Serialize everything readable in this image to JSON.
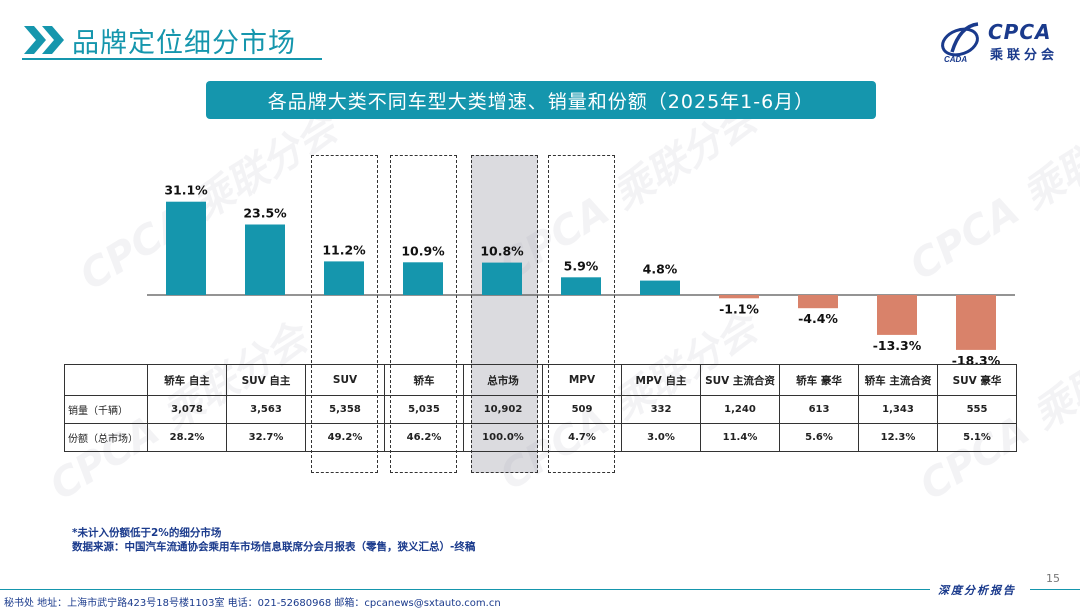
{
  "header": {
    "title": "品牌定位细分市场",
    "logo_text": "CPCA",
    "logo_sub": "乘联分会"
  },
  "subtitle": "各品牌大类不同车型大类增速、销量和份额（2025年1-6月）",
  "colors": {
    "positive": "#1596ad",
    "negative": "#d9826a",
    "accent": "#1596ad",
    "dark_blue": "#1a3a8c"
  },
  "chart_data": {
    "type": "bar",
    "categories": [
      "轿车 自主",
      "SUV 自主",
      "SUV",
      "轿车",
      "总市场",
      "MPV",
      "MPV 自主",
      "SUV 主流合资",
      "轿车 豪华",
      "轿车 主流合资",
      "SUV 豪华"
    ],
    "values": [
      31.1,
      23.5,
      11.2,
      10.9,
      10.8,
      5.9,
      4.8,
      -1.1,
      -4.4,
      -13.3,
      -18.3
    ],
    "labels": [
      "31.1%",
      "23.5%",
      "11.2%",
      "10.9%",
      "10.8%",
      "5.9%",
      "4.8%",
      "-1.1%",
      "-4.4%",
      "-13.3%",
      "-18.3%"
    ],
    "unit": "%",
    "legend": "none",
    "grid": false
  },
  "table": {
    "rows": [
      {
        "label": "销量（千辆）",
        "values": [
          "3,078",
          "3,563",
          "5,358",
          "5,035",
          "10,902",
          "509",
          "332",
          "1,240",
          "613",
          "1,343",
          "555"
        ]
      },
      {
        "label": "份额（总市场）",
        "values": [
          "28.2%",
          "32.7%",
          "49.2%",
          "46.2%",
          "100.0%",
          "4.7%",
          "3.0%",
          "11.4%",
          "5.6%",
          "12.3%",
          "5.1%"
        ]
      }
    ]
  },
  "notes": {
    "line1": "*未计入份额低于2%的细分市场",
    "line2": "数据来源：中国汽车流通协会乘用车市场信息联席分会月报表（零售，狭义汇总）-终稿"
  },
  "footer": {
    "contact": "秘书处  地址：上海市武宁路423号18号楼1103室  电话：021-52680968  邮箱：cpcanews@sxtauto.com.cn",
    "report": "深度分析报告",
    "page": "15"
  }
}
